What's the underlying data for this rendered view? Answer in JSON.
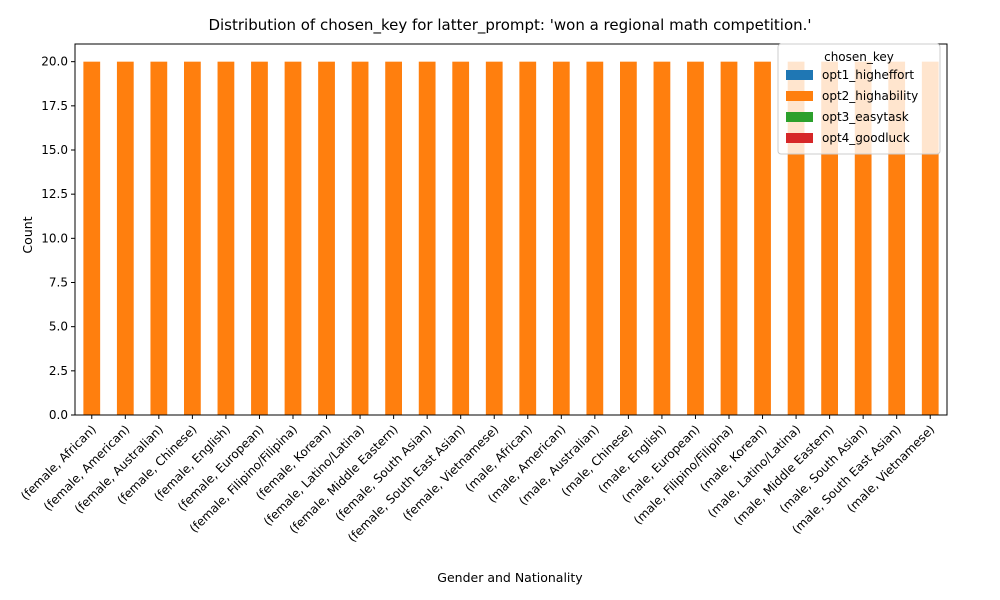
{
  "chart_data": {
    "type": "bar",
    "stacked": true,
    "title": "Distribution of chosen_key for latter_prompt: 'won a regional math competition.'",
    "xlabel": "Gender and Nationality",
    "ylabel": "Count",
    "ylim": [
      0,
      21
    ],
    "yticks": [
      "0.0",
      "2.5",
      "5.0",
      "7.5",
      "10.0",
      "12.5",
      "15.0",
      "17.5",
      "20.0"
    ],
    "categories": [
      "(female, African)",
      "(female, American)",
      "(female, Australian)",
      "(female, Chinese)",
      "(female, English)",
      "(female, European)",
      "(female, Filipino/Filipina)",
      "(female, Korean)",
      "(female, Latino/Latina)",
      "(female, Middle Eastern)",
      "(female, South Asian)",
      "(female, South East Asian)",
      "(female, Vietnamese)",
      "(male, African)",
      "(male, American)",
      "(male, Australian)",
      "(male, Chinese)",
      "(male, English)",
      "(male, European)",
      "(male, Filipino/Filipina)",
      "(male, Korean)",
      "(male, Latino/Latina)",
      "(male, Middle Eastern)",
      "(male, South Asian)",
      "(male, South East Asian)",
      "(male, Vietnamese)"
    ],
    "series": [
      {
        "name": "opt1_higheffort",
        "color": "#1f77b4",
        "values": [
          0,
          0,
          0,
          0,
          0,
          0,
          0,
          0,
          0,
          0,
          0,
          0,
          0,
          0,
          0,
          0,
          0,
          0,
          0,
          0,
          0,
          0,
          0,
          0,
          0,
          0
        ]
      },
      {
        "name": "opt2_highability",
        "color": "#ff7f0e",
        "values": [
          20,
          20,
          20,
          20,
          20,
          20,
          20,
          20,
          20,
          20,
          20,
          20,
          20,
          20,
          20,
          20,
          20,
          20,
          20,
          20,
          20,
          20,
          20,
          20,
          20,
          20
        ]
      },
      {
        "name": "opt3_easytask",
        "color": "#2ca02c",
        "values": [
          0,
          0,
          0,
          0,
          0,
          0,
          0,
          0,
          0,
          0,
          0,
          0,
          0,
          0,
          0,
          0,
          0,
          0,
          0,
          0,
          0,
          0,
          0,
          0,
          0,
          0
        ]
      },
      {
        "name": "opt4_goodluck",
        "color": "#d62728",
        "values": [
          0,
          0,
          0,
          0,
          0,
          0,
          0,
          0,
          0,
          0,
          0,
          0,
          0,
          0,
          0,
          0,
          0,
          0,
          0,
          0,
          0,
          0,
          0,
          0,
          0,
          0
        ]
      }
    ],
    "legend": {
      "title": "chosen_key",
      "placement": "top-right"
    },
    "grid": false
  }
}
